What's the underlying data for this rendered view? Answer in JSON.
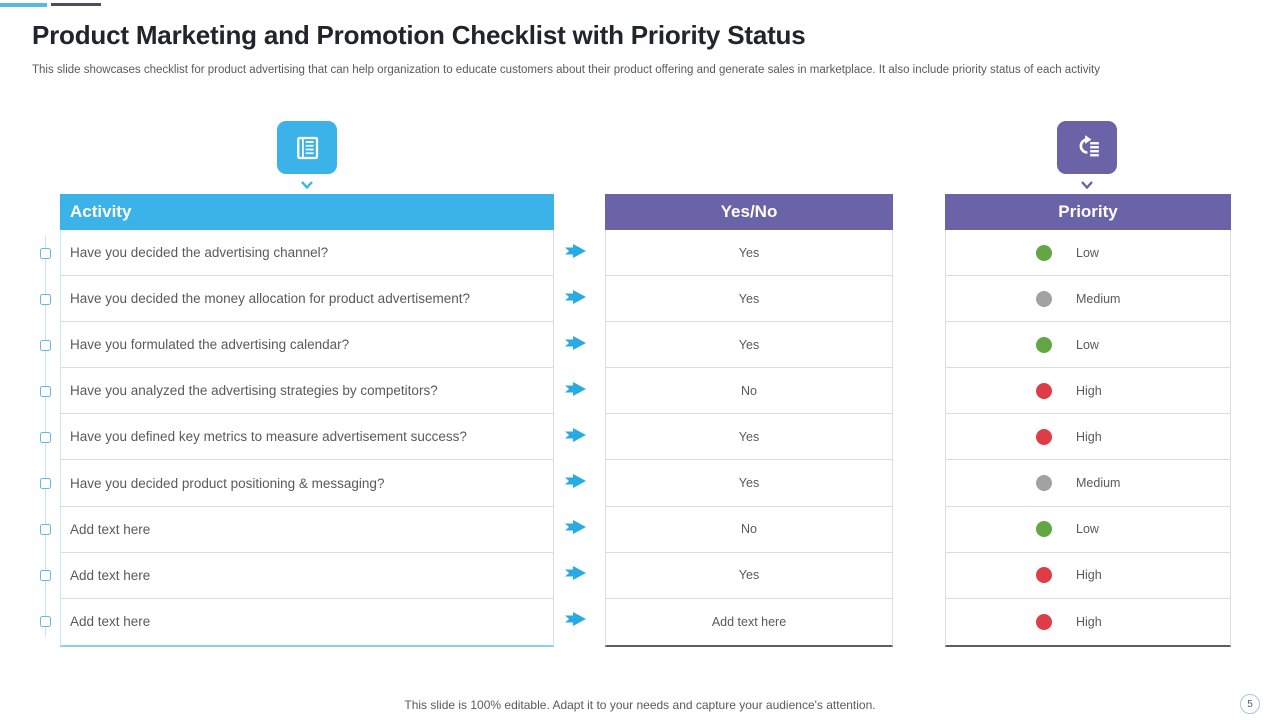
{
  "slide": {
    "title": "Product Marketing and Promotion Checklist with Priority Status",
    "subtitle": "This slide showcases checklist for product advertising that can help organization to educate customers about their product offering and generate sales in marketplace. It also include priority status of each activity",
    "footer_note": "This slide is 100% editable. Adapt it to your needs and capture your audience's attention.",
    "page_number": "5"
  },
  "colors": {
    "accent_blue": "#3CB3E8",
    "accent_purple": "#6A63A7",
    "arrow_blue": "#29ABE2",
    "low_green": "#62A744",
    "medium_gray": "#A2A2A2",
    "high_red": "#DE3D47",
    "text_gray": "#5A5A5A"
  },
  "icons": {
    "activity_icon": "checklist-ledger-icon",
    "priority_icon": "refresh-list-icon"
  },
  "checklist": {
    "activity_header": "Activity",
    "yesno_header": "Yes/No",
    "priority_header": "Priority",
    "priority_colors": {
      "Low": "#62A744",
      "Medium": "#A2A2A2",
      "High": "#DE3D47"
    },
    "rows": [
      {
        "activity": "Have you decided the advertising channel?",
        "yes_no": "Yes",
        "priority": "Low"
      },
      {
        "activity": "Have you decided the money allocation for product advertisement?",
        "yes_no": "Yes",
        "priority": "Medium"
      },
      {
        "activity": "Have you formulated the advertising calendar?",
        "yes_no": "Yes",
        "priority": "Low"
      },
      {
        "activity": "Have you analyzed the advertising strategies by competitors?",
        "yes_no": "No",
        "priority": "High"
      },
      {
        "activity": "Have you defined key metrics to measure advertisement success?",
        "yes_no": "Yes",
        "priority": "High"
      },
      {
        "activity": "Have you decided product positioning & messaging?",
        "yes_no": "Yes",
        "priority": "Medium"
      },
      {
        "activity": "Add text here",
        "yes_no": "No",
        "priority": "Low"
      },
      {
        "activity": "Add text here",
        "yes_no": "Yes",
        "priority": "High"
      },
      {
        "activity": "Add text here",
        "yes_no": "Add text here",
        "priority": "High"
      }
    ]
  }
}
